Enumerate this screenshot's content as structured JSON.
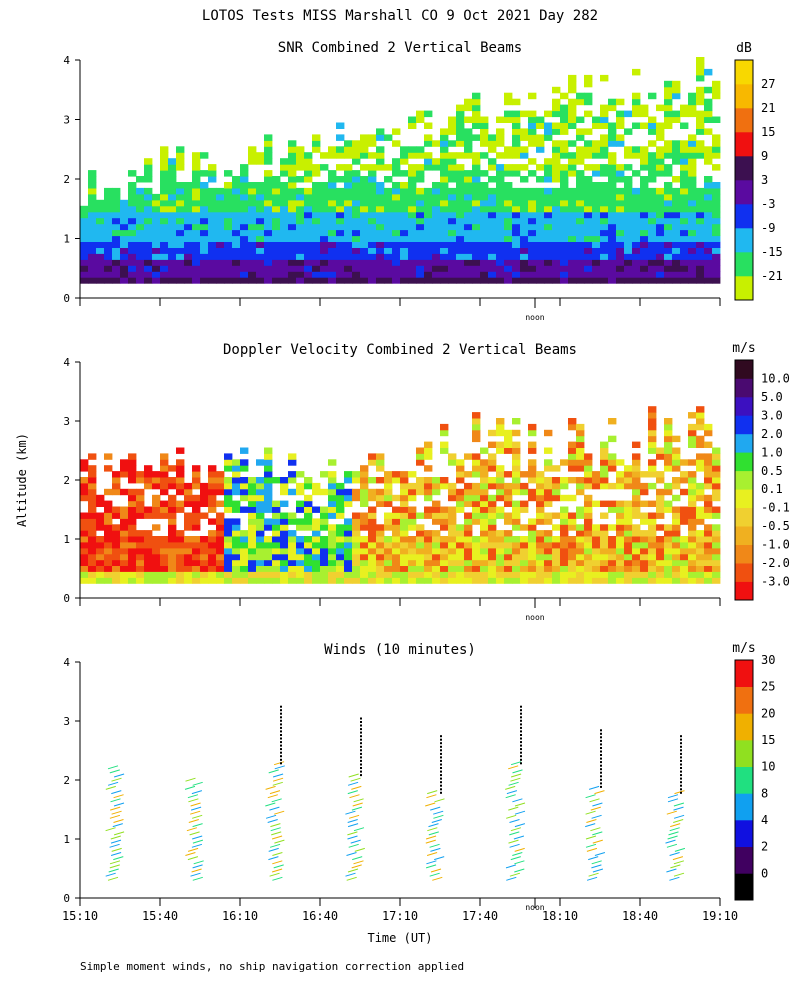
{
  "main_title": "LOTOS Tests MISS Marshall CO   9 Oct 2021 Day 282",
  "ylabel": "Altitude (km)",
  "xlabel": "Time (UT)",
  "noon_label": "noon",
  "footnote": "Simple moment winds, no ship navigation correction applied",
  "chart_data": [
    {
      "type": "heatmap",
      "title": "SNR Combined 2 Vertical Beams",
      "ylim": [
        0,
        4
      ],
      "y_ticks": [
        "0",
        "1",
        "2",
        "3",
        "4"
      ],
      "colorbar": {
        "unit": "dB",
        "levels": [
          "-21",
          "-15",
          "-9",
          "-3",
          "3",
          "9",
          "15",
          "21",
          "27"
        ],
        "colors": [
          "#c8f000",
          "#28e060",
          "#20b8f0",
          "#1030f0",
          "#5a0aa0",
          "#3c1050",
          "#f01010",
          "#f07010",
          "#f8b800",
          "#f8d800"
        ]
      }
    },
    {
      "type": "heatmap",
      "title": "Doppler Velocity Combined 2 Vertical Beams",
      "ylim": [
        0,
        4
      ],
      "y_ticks": [
        "0",
        "1",
        "2",
        "3",
        "4"
      ],
      "colorbar": {
        "unit": "m/s",
        "levels": [
          "-3.0",
          "-2.0",
          "-1.0",
          "-0.5",
          "-0.1",
          "0.1",
          "0.5",
          "1.0",
          "2.0",
          "3.0",
          "5.0",
          "10.0"
        ],
        "colors": [
          "#f01010",
          "#f05010",
          "#f08818",
          "#f0b020",
          "#f0d030",
          "#e8f020",
          "#a8f030",
          "#30e030",
          "#20a8f0",
          "#1030f0",
          "#3c10c0",
          "#4a0a70",
          "#300a20"
        ]
      }
    },
    {
      "type": "scatter",
      "title": "Winds (10 minutes)",
      "ylim": [
        0,
        4
      ],
      "y_ticks": [
        "0",
        "1",
        "2",
        "3",
        "4"
      ],
      "x_ticks": [
        "15:10",
        "15:40",
        "16:10",
        "16:40",
        "17:10",
        "17:40",
        "18:10",
        "18:40",
        "19:10"
      ],
      "colorbar": {
        "unit": "m/s",
        "levels": [
          "0",
          "2",
          "4",
          "8",
          "10",
          "15",
          "20",
          "25",
          "30"
        ],
        "colors": [
          "#000000",
          "#400060",
          "#1010e0",
          "#10a0f0",
          "#20e080",
          "#90e020",
          "#f0b000",
          "#f07010",
          "#f01010"
        ]
      }
    }
  ]
}
